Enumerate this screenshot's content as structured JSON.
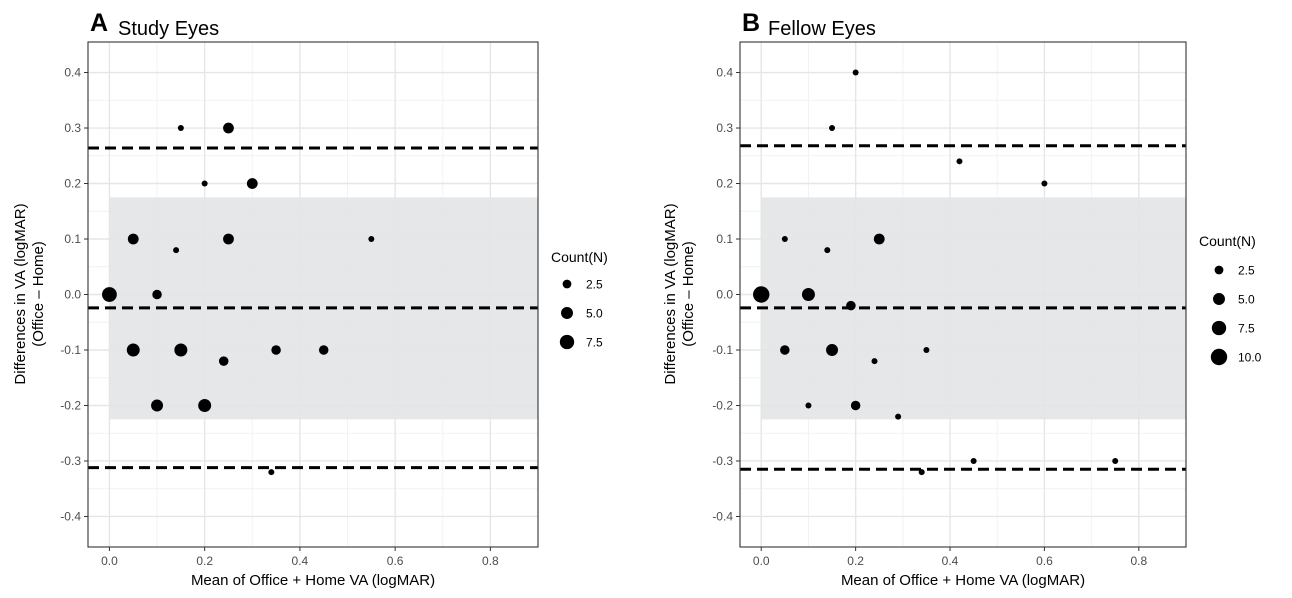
{
  "chart_data": [
    {
      "type": "scatter",
      "panel_letter": "A",
      "title": "Study Eyes",
      "xlabel": "Mean of Office + Home VA (logMAR)",
      "ylabel_line1": "Differences in VA (logMAR)",
      "ylabel_line2": "(Office – Home)",
      "xlim": [
        -0.045,
        0.9
      ],
      "ylim": [
        -0.455,
        0.455
      ],
      "x_ticks": [
        0.0,
        0.2,
        0.4,
        0.6,
        0.8
      ],
      "x_tick_labels": [
        "0.0",
        "0.2",
        "0.4",
        "0.6",
        "0.8"
      ],
      "y_ticks": [
        -0.4,
        -0.3,
        -0.2,
        -0.1,
        0.0,
        0.1,
        0.2,
        0.3,
        0.4
      ],
      "y_tick_labels": [
        "-0.4",
        "-0.3",
        "-0.2",
        "-0.1",
        "0.0",
        "0.1",
        "0.2",
        "0.3",
        "0.4"
      ],
      "grid": true,
      "shaded_band": {
        "x": [
          0.0,
          0.9
        ],
        "y": [
          -0.225,
          0.175
        ],
        "color": "#e2e4e7"
      },
      "reference_lines": [
        {
          "y": 0.264,
          "style": "dashed"
        },
        {
          "y": -0.024,
          "style": "dashed"
        },
        {
          "y": -0.312,
          "style": "dashed"
        }
      ],
      "points": [
        {
          "x": 0.0,
          "y": 0.0,
          "n": 8
        },
        {
          "x": 0.05,
          "y": 0.1,
          "n": 4
        },
        {
          "x": 0.05,
          "y": -0.1,
          "n": 6
        },
        {
          "x": 0.1,
          "y": 0.0,
          "n": 3
        },
        {
          "x": 0.1,
          "y": -0.2,
          "n": 5
        },
        {
          "x": 0.14,
          "y": 0.08,
          "n": 1
        },
        {
          "x": 0.15,
          "y": 0.3,
          "n": 1
        },
        {
          "x": 0.15,
          "y": -0.1,
          "n": 6
        },
        {
          "x": 0.2,
          "y": 0.2,
          "n": 1
        },
        {
          "x": 0.2,
          "y": -0.2,
          "n": 6
        },
        {
          "x": 0.24,
          "y": -0.12,
          "n": 3
        },
        {
          "x": 0.25,
          "y": 0.3,
          "n": 4
        },
        {
          "x": 0.25,
          "y": 0.1,
          "n": 4
        },
        {
          "x": 0.3,
          "y": 0.2,
          "n": 4
        },
        {
          "x": 0.34,
          "y": -0.32,
          "n": 1
        },
        {
          "x": 0.35,
          "y": -0.1,
          "n": 3
        },
        {
          "x": 0.45,
          "y": -0.1,
          "n": 3
        },
        {
          "x": 0.55,
          "y": 0.1,
          "n": 1
        }
      ],
      "legend": {
        "title": "Count(N)",
        "values": [
          2.5,
          5.0,
          7.5
        ],
        "labels": [
          "2.5",
          "5.0",
          "7.5"
        ],
        "placement": "right"
      }
    },
    {
      "type": "scatter",
      "panel_letter": "B",
      "title": "Fellow Eyes",
      "xlabel": "Mean of Office + Home VA (logMAR)",
      "ylabel_line1": "Differences in VA (logMAR)",
      "ylabel_line2": "(Office – Home)",
      "xlim": [
        -0.045,
        0.9
      ],
      "ylim": [
        -0.455,
        0.455
      ],
      "x_ticks": [
        0.0,
        0.2,
        0.4,
        0.6,
        0.8
      ],
      "x_tick_labels": [
        "0.0",
        "0.2",
        "0.4",
        "0.6",
        "0.8"
      ],
      "y_ticks": [
        -0.4,
        -0.3,
        -0.2,
        -0.1,
        0.0,
        0.1,
        0.2,
        0.3,
        0.4
      ],
      "y_tick_labels": [
        "-0.4",
        "-0.3",
        "-0.2",
        "-0.1",
        "0.0",
        "0.1",
        "0.2",
        "0.3",
        "0.4"
      ],
      "grid": true,
      "shaded_band": {
        "x": [
          0.0,
          0.9
        ],
        "y": [
          -0.225,
          0.175
        ],
        "color": "#e2e4e7"
      },
      "reference_lines": [
        {
          "y": 0.268,
          "style": "dashed"
        },
        {
          "y": -0.024,
          "style": "dashed"
        },
        {
          "y": -0.315,
          "style": "dashed"
        }
      ],
      "points": [
        {
          "x": 0.0,
          "y": 0.0,
          "n": 10
        },
        {
          "x": 0.05,
          "y": 0.1,
          "n": 1
        },
        {
          "x": 0.05,
          "y": -0.1,
          "n": 3
        },
        {
          "x": 0.1,
          "y": 0.0,
          "n": 6
        },
        {
          "x": 0.1,
          "y": -0.2,
          "n": 1
        },
        {
          "x": 0.14,
          "y": 0.08,
          "n": 1
        },
        {
          "x": 0.15,
          "y": 0.3,
          "n": 1
        },
        {
          "x": 0.15,
          "y": -0.1,
          "n": 5
        },
        {
          "x": 0.19,
          "y": -0.02,
          "n": 3
        },
        {
          "x": 0.2,
          "y": 0.4,
          "n": 1
        },
        {
          "x": 0.2,
          "y": -0.2,
          "n": 3
        },
        {
          "x": 0.24,
          "y": -0.12,
          "n": 1
        },
        {
          "x": 0.25,
          "y": 0.1,
          "n": 4
        },
        {
          "x": 0.29,
          "y": -0.22,
          "n": 1
        },
        {
          "x": 0.34,
          "y": -0.32,
          "n": 1
        },
        {
          "x": 0.35,
          "y": -0.1,
          "n": 1
        },
        {
          "x": 0.42,
          "y": 0.24,
          "n": 1
        },
        {
          "x": 0.45,
          "y": -0.3,
          "n": 1
        },
        {
          "x": 0.6,
          "y": 0.2,
          "n": 1
        },
        {
          "x": 0.75,
          "y": -0.3,
          "n": 1
        }
      ],
      "legend": {
        "title": "Count(N)",
        "values": [
          2.5,
          5.0,
          7.5,
          10.0
        ],
        "labels": [
          "2.5",
          "5.0",
          "7.5",
          "10.0"
        ],
        "placement": "right"
      }
    }
  ]
}
